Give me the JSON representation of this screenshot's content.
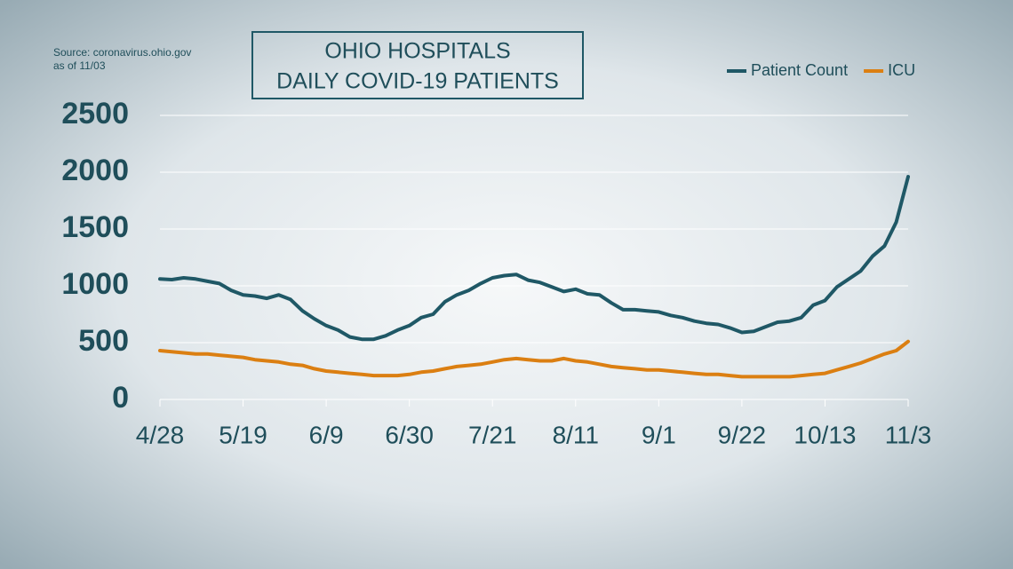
{
  "chart_data": {
    "type": "line",
    "title": [
      "OHIO HOSPITALS",
      "DAILY COVID-19 PATIENTS"
    ],
    "source": [
      "Source: coronavirus.ohio.gov",
      "as of 11/03"
    ],
    "categories": [
      "4/28",
      null,
      null,
      null,
      null,
      null,
      null,
      "5/19",
      null,
      null,
      null,
      null,
      null,
      null,
      "6/9",
      null,
      null,
      null,
      null,
      null,
      null,
      "6/30",
      null,
      null,
      null,
      null,
      null,
      null,
      "7/21",
      null,
      null,
      null,
      null,
      null,
      null,
      "8/11",
      null,
      null,
      null,
      null,
      null,
      null,
      "9/1",
      null,
      null,
      null,
      null,
      null,
      null,
      "9/22",
      null,
      null,
      null,
      null,
      null,
      null,
      "10/13",
      null,
      null,
      null,
      null,
      null,
      null,
      "11/3"
    ],
    "series": [
      {
        "name": "Patient Count",
        "color": "#1f5866",
        "values": [
          1060,
          1055,
          1070,
          1060,
          1040,
          1020,
          960,
          920,
          910,
          890,
          920,
          880,
          780,
          710,
          650,
          610,
          550,
          530,
          530,
          560,
          610,
          650,
          720,
          750,
          860,
          920,
          960,
          1020,
          1070,
          1090,
          1100,
          1050,
          1030,
          990,
          950,
          970,
          930,
          920,
          850,
          790,
          790,
          780,
          770,
          740,
          720,
          690,
          670,
          660,
          630,
          590,
          600,
          640,
          680,
          690,
          720,
          830,
          870,
          990,
          1060,
          1130,
          1260,
          1350,
          1560,
          1960
        ]
      },
      {
        "name": "ICU",
        "color": "#db7f12",
        "values": [
          430,
          420,
          410,
          400,
          400,
          390,
          380,
          370,
          350,
          340,
          330,
          310,
          300,
          270,
          250,
          240,
          230,
          220,
          210,
          210,
          210,
          220,
          240,
          250,
          270,
          290,
          300,
          310,
          330,
          350,
          360,
          350,
          340,
          340,
          360,
          340,
          330,
          310,
          290,
          280,
          270,
          260,
          260,
          250,
          240,
          230,
          220,
          220,
          210,
          200,
          200,
          200,
          200,
          200,
          210,
          220,
          230,
          260,
          290,
          320,
          360,
          400,
          430,
          510
        ]
      }
    ],
    "ylim": [
      0,
      2500
    ],
    "yticks": [
      0,
      500,
      1000,
      1500,
      2000,
      2500
    ],
    "grid": true,
    "legend": "top-right"
  }
}
